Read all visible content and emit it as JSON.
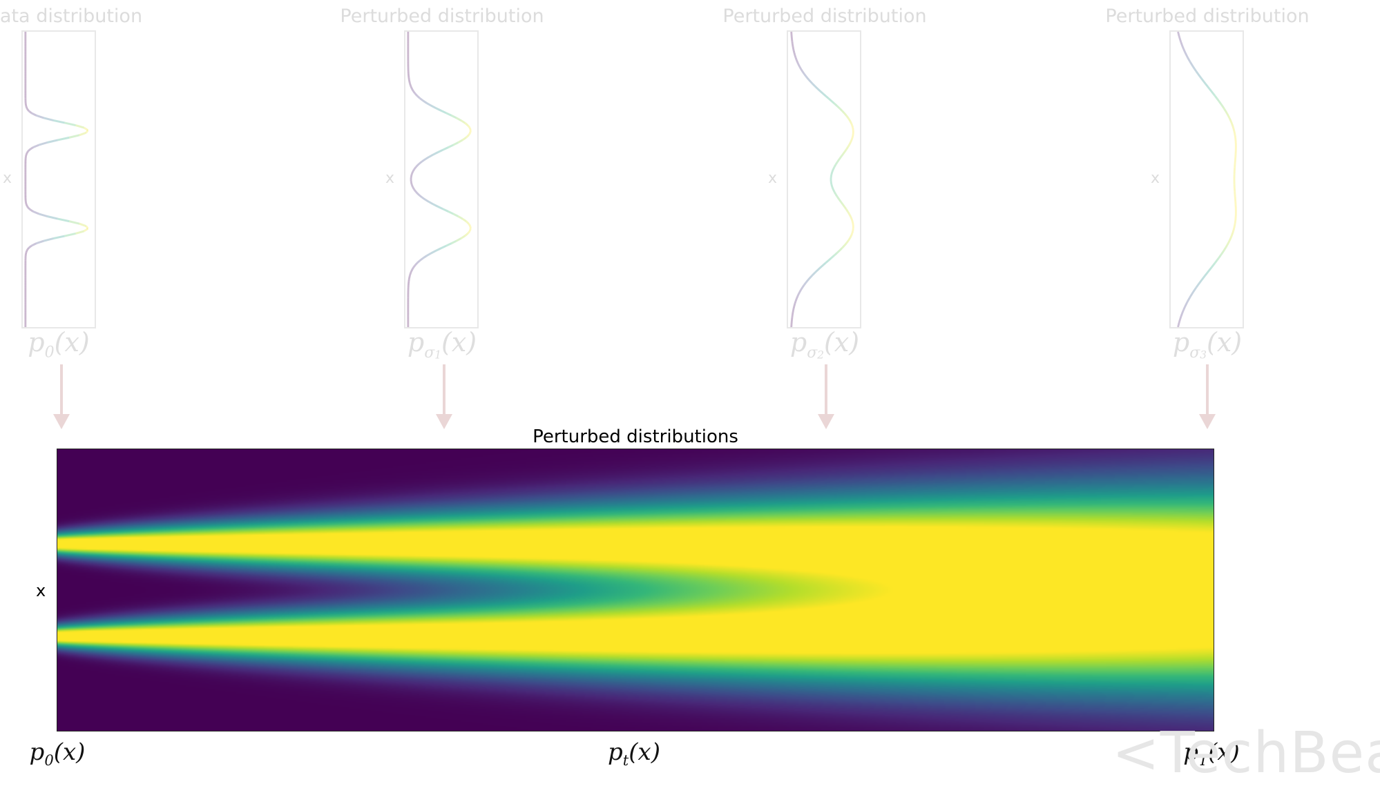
{
  "panels": [
    {
      "title": "ata distribution",
      "xlabel": "x",
      "label_base": "p",
      "label_sub": "0",
      "label_sub2": "",
      "label_arg": "(x)",
      "sigma": 0.055
    },
    {
      "title": "Perturbed distribution",
      "xlabel": "x",
      "label_base": "p",
      "label_sub": "σ",
      "label_sub2": "1",
      "label_arg": "(x)",
      "sigma": 0.12
    },
    {
      "title": "Perturbed distribution",
      "xlabel": "x",
      "label_base": "p",
      "label_sub": "σ",
      "label_sub2": "2",
      "label_arg": "(x)",
      "sigma": 0.22
    },
    {
      "title": "Perturbed distribution",
      "xlabel": "x",
      "label_base": "p",
      "label_sub": "σ",
      "label_sub2": "3",
      "label_arg": "(x)",
      "sigma": 0.3
    }
  ],
  "heatmap": {
    "title": "Perturbed distributions",
    "ylabel": "x",
    "bottom_labels": [
      {
        "base": "p",
        "sub": "0",
        "arg": "(x)"
      },
      {
        "base": "p",
        "sub": "t",
        "arg": "(x)"
      },
      {
        "base": "p",
        "sub": "T",
        "arg": "(x)"
      }
    ]
  },
  "chart_data": {
    "type": "heatmap",
    "title": "Perturbed distributions",
    "ylabel": "x",
    "colormap": "viridis",
    "modes": [
      -0.33,
      0.33
    ],
    "sigma_start": 0.055,
    "sigma_end": 0.33
  },
  "colors": {
    "arrow": "#ead6d6",
    "panel_border": "#e8e8e8",
    "faint_text": "#dcdcdc"
  },
  "watermark": "<TechBeat"
}
